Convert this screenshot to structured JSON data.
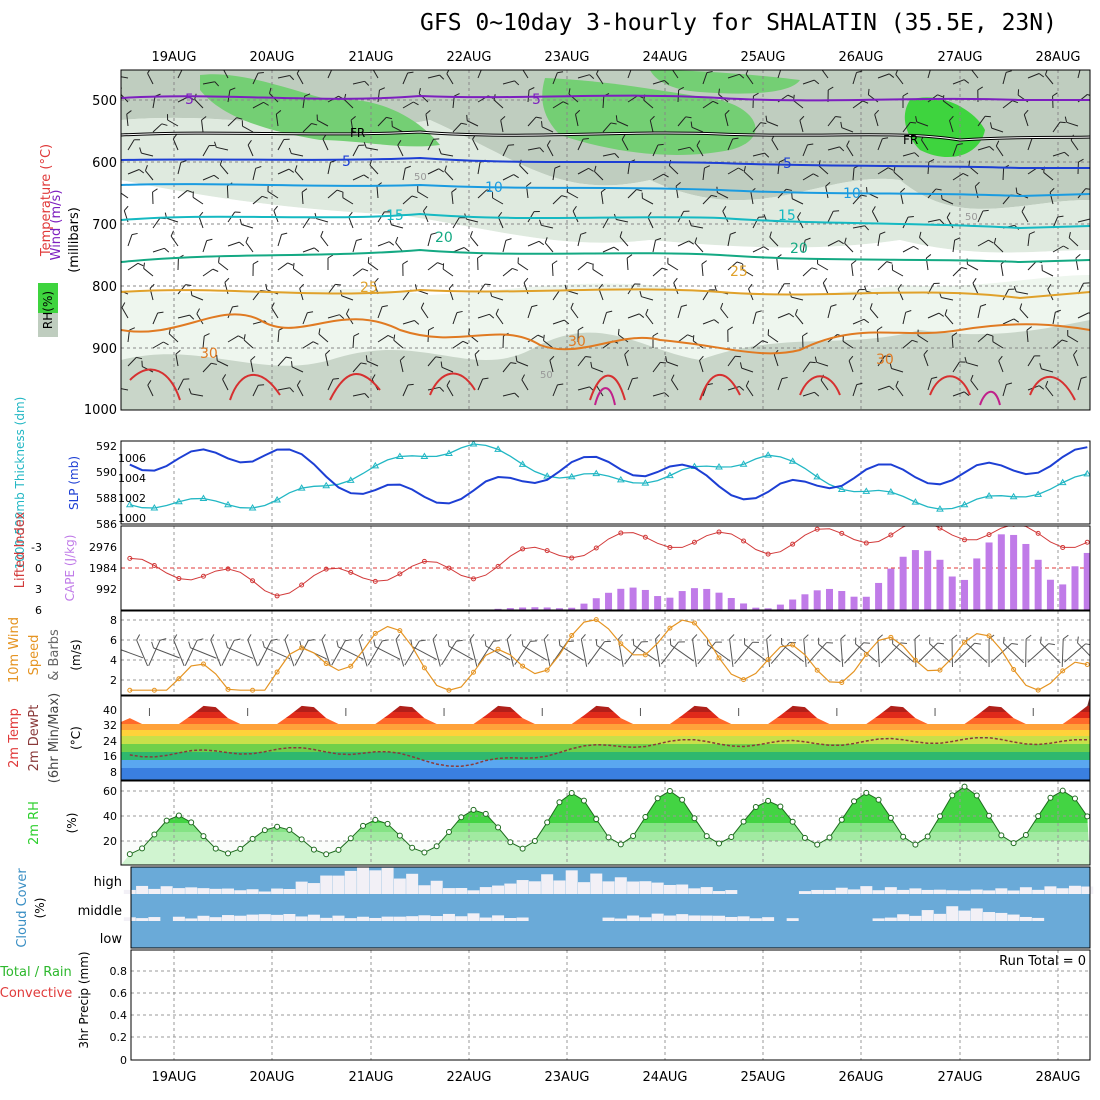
{
  "title": "GFS 0~10day 3-hourly for SHALATIN (35.5E, 23N)",
  "dates": [
    "19AUG",
    "20AUG",
    "21AUG",
    "22AUG",
    "23AUG",
    "24AUG",
    "25AUG",
    "26AUG",
    "27AUG",
    "28AUG"
  ],
  "run_total": "Run Total = 0",
  "colors": {
    "wind_label": "#7f1fbf",
    "temp_label": "#e03a3a",
    "rh_green": "#2db82d",
    "slp": "#1d3fd4",
    "thickness": "#22b7c4",
    "lifted_index": "#d23a3a",
    "cape": "#c07be8",
    "wind10": "#e59422",
    "rh2m": "#2fd02f",
    "cloud": "#6aaad8",
    "precip_total": "#2db82d",
    "precip_conv": "#e03a3a"
  },
  "panels": {
    "upper": {
      "labels": {
        "wind": "Wind (m/s)",
        "temp": "Temperature (°C)",
        "mb": "(millibars)",
        "rh": "RH(%)"
      },
      "yticks": [
        "500",
        "600",
        "700",
        "800",
        "900",
        "1000"
      ],
      "fr_label": "FR",
      "contour_labels": [
        "5",
        "5",
        "5",
        "5",
        "10",
        "10",
        "15",
        "15",
        "20",
        "20",
        "25",
        "25",
        "30",
        "30",
        "30",
        "50",
        "50",
        "50"
      ]
    },
    "slp": {
      "label_thick": "1000-500mb Thickness (dm)",
      "label_slp": "SLP (mb)",
      "left_ticks": [
        "592",
        "590",
        "588",
        "586"
      ],
      "right_ticks": [
        "1006",
        "1004",
        "1002",
        "1000"
      ]
    },
    "li": {
      "label_li": "Lifted Index",
      "label_cape": "CAPE (J/kg)",
      "left_ticks": [
        "-3",
        "0",
        "3",
        "6"
      ],
      "right_ticks": [
        "2976",
        "1984",
        "992"
      ]
    },
    "wind10": {
      "label_a": "10m Wind",
      "label_b": "Speed",
      "label_c": "& Barbs",
      "unit": "(m/s)",
      "ticks": [
        "8",
        "6",
        "4",
        "2"
      ]
    },
    "temp2m": {
      "label_a": "2m Temp",
      "label_b": "2m DewPt",
      "label_c": "(6hr Min/Max)",
      "unit": "(°C)",
      "ticks": [
        "40",
        "32",
        "24",
        "16",
        "8"
      ]
    },
    "rh2m": {
      "label": "2m RH",
      "unit": "(%)",
      "ticks": [
        "60",
        "40",
        "20"
      ]
    },
    "cloud": {
      "label": "Cloud Cover",
      "unit": "(%)",
      "levels": [
        "high",
        "middle",
        "low"
      ]
    },
    "precip": {
      "label_a": "Total / Rain",
      "label_b": "Convective",
      "label_c": "3hr Precip (mm)",
      "ticks": [
        "0.8",
        "0.6",
        "0.4",
        "0.2",
        "0"
      ]
    }
  },
  "chart_data": [
    {
      "type": "line",
      "title": "SLP (mb) and 1000-500mb Thickness (dm)",
      "x": [
        "19AUG",
        "20AUG",
        "21AUG",
        "22AUG",
        "23AUG",
        "24AUG",
        "25AUG",
        "26AUG",
        "27AUG",
        "28AUG"
      ],
      "series": [
        {
          "name": "SLP (mb)",
          "values": [
            1005.5,
            1006.6,
            1002.5,
            1002.3,
            1005.2,
            1004.9,
            1002.2,
            1004.5,
            1004.1,
            1005.6
          ],
          "ylim": [
            999.5,
            1007.5
          ]
        },
        {
          "name": "1000-500mb Thickness (dm)",
          "values": [
            587.5,
            587.5,
            590.0,
            591.8,
            589.3,
            589.3,
            591.0,
            588.3,
            587.2,
            588.8
          ],
          "ylim": [
            586,
            592
          ]
        }
      ]
    },
    {
      "type": "bar",
      "title": "CAPE (J/kg)",
      "x": [
        "19AUG",
        "20AUG",
        "21AUG",
        "22AUG",
        "23AUG",
        "24AUG",
        "25AUG",
        "26AUG",
        "27AUG",
        "28AUG"
      ],
      "values": [
        0,
        0,
        0,
        0,
        150,
        1150,
        100,
        1100,
        2700,
        2300
      ],
      "ylim": [
        0,
        3300
      ]
    },
    {
      "type": "line",
      "title": "Lifted Index",
      "x": [
        "19AUG",
        "20AUG",
        "21AUG",
        "22AUG",
        "23AUG",
        "24AUG",
        "25AUG",
        "26AUG",
        "27AUG",
        "28AUG"
      ],
      "values": [
        0.5,
        3.0,
        1.0,
        0.8,
        -2.0,
        -3.5,
        -2.5,
        -4.0,
        -4.5,
        -3.5
      ],
      "ylim": [
        6,
        -5
      ]
    },
    {
      "type": "line",
      "title": "10m Wind Speed (m/s)",
      "x": [
        "19AUG",
        "20AUG",
        "21AUG",
        "22AUG",
        "23AUG",
        "24AUG",
        "25AUG",
        "26AUG",
        "27AUG",
        "28AUG"
      ],
      "values": [
        1.0,
        1.5,
        6.0,
        1.5,
        5.5,
        6.5,
        3.0,
        3.5,
        5.0,
        2.0
      ],
      "ylim": [
        0,
        8.8
      ]
    },
    {
      "type": "area",
      "title": "2m Temp (6hr Min/Max) and 2m DewPt (°C)",
      "x": [
        "19AUG",
        "20AUG",
        "21AUG",
        "22AUG",
        "23AUG",
        "24AUG",
        "25AUG",
        "26AUG",
        "27AUG",
        "28AUG"
      ],
      "series": [
        {
          "name": "2m Temp Max",
          "values": [
            40,
            40,
            40,
            40,
            40,
            40,
            40,
            40,
            40,
            40
          ]
        },
        {
          "name": "2m Temp Min",
          "values": [
            31,
            31,
            31,
            31,
            31,
            31,
            31,
            31,
            31,
            31
          ]
        },
        {
          "name": "2m DewPt",
          "values": [
            17,
            19,
            18,
            11,
            19,
            23,
            22,
            23,
            24,
            23
          ]
        }
      ],
      "ylim": [
        4,
        46
      ]
    },
    {
      "type": "area",
      "title": "2m RH (%)",
      "x": [
        "19AUG",
        "20AUG",
        "21AUG",
        "22AUG",
        "23AUG",
        "24AUG",
        "25AUG",
        "26AUG",
        "27AUG",
        "28AUG"
      ],
      "series": [
        {
          "name": "2m RH max",
          "values": [
            42,
            33,
            38,
            45,
            58,
            60,
            52,
            58,
            63,
            60
          ]
        },
        {
          "name": "2m RH min",
          "values": [
            13,
            14,
            12,
            16,
            18,
            22,
            20,
            20,
            20,
            22
          ]
        }
      ],
      "ylim": [
        5,
        67
      ]
    },
    {
      "type": "heatmap",
      "title": "Cloud Cover (%)",
      "rows": [
        "high",
        "middle",
        "low"
      ],
      "x": [
        "19AUG",
        "20AUG",
        "21AUG",
        "22AUG",
        "23AUG",
        "24AUG",
        "25AUG",
        "26AUG",
        "27AUG",
        "28AUG"
      ],
      "values": [
        [
          10,
          5,
          40,
          5,
          30,
          15,
          0,
          10,
          5,
          10
        ],
        [
          5,
          10,
          5,
          10,
          0,
          10,
          5,
          0,
          20,
          0
        ],
        [
          0,
          0,
          0,
          0,
          0,
          0,
          0,
          0,
          0,
          0
        ]
      ]
    },
    {
      "type": "bar",
      "title": "3hr Precip (mm)",
      "x": [
        "19AUG",
        "20AUG",
        "21AUG",
        "22AUG",
        "23AUG",
        "24AUG",
        "25AUG",
        "26AUG",
        "27AUG",
        "28AUG"
      ],
      "values": [
        0,
        0,
        0,
        0,
        0,
        0,
        0,
        0,
        0,
        0
      ],
      "ylim": [
        0,
        0.9
      ]
    }
  ]
}
